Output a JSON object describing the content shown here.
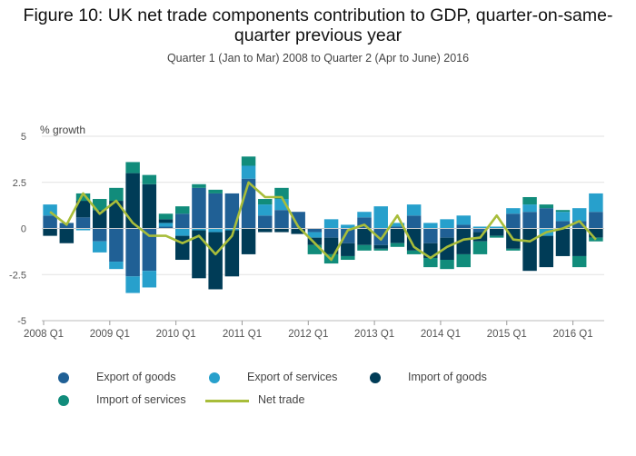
{
  "title_line1": "Figure 10: UK net trade components contribution to GDP, quarter-on-same-",
  "title_line2": "quarter previous year",
  "subtitle": "Quarter 1 (Jan to Mar) 2008 to Quarter 2 (Apr to June) 2016",
  "chart_data": {
    "type": "bar",
    "stacked": true,
    "ylabel": "% growth",
    "ylim": [
      -5,
      5
    ],
    "yticks": [
      -5,
      -2.5,
      0,
      2.5,
      5
    ],
    "ytick_labels": [
      "-5",
      "-2.5",
      "0",
      "2.5",
      "5"
    ],
    "grid": true,
    "legend_position": "bottom",
    "x_tick_labels": [
      "2008 Q1",
      "2009 Q1",
      "2010 Q1",
      "2011 Q1",
      "2012 Q1",
      "2013 Q1",
      "2014 Q1",
      "2015 Q1",
      "2016 Q1"
    ],
    "categories": [
      "2008 Q1",
      "2008 Q2",
      "2008 Q3",
      "2008 Q4",
      "2009 Q1",
      "2009 Q2",
      "2009 Q3",
      "2009 Q4",
      "2010 Q1",
      "2010 Q2",
      "2010 Q3",
      "2010 Q4",
      "2011 Q1",
      "2011 Q2",
      "2011 Q3",
      "2011 Q4",
      "2012 Q1",
      "2012 Q2",
      "2012 Q3",
      "2012 Q4",
      "2013 Q1",
      "2013 Q2",
      "2013 Q3",
      "2013 Q4",
      "2014 Q1",
      "2014 Q2",
      "2014 Q3",
      "2014 Q4",
      "2015 Q1",
      "2015 Q2",
      "2015 Q3",
      "2015 Q4",
      "2016 Q1",
      "2016 Q2"
    ],
    "series": [
      {
        "name": "Export of goods",
        "color": "#206095",
        "values": [
          0.7,
          0.3,
          0.6,
          -0.7,
          -1.8,
          -2.6,
          -2.3,
          0.1,
          0.8,
          2.2,
          1.9,
          1.9,
          2.7,
          0.7,
          1.0,
          0.9,
          -0.2,
          -0.5,
          -0.8,
          0.6,
          -0.9,
          0.1,
          0.7,
          -0.8,
          -0.5,
          0.2,
          -0.2,
          0.0,
          0.8,
          0.9,
          1.1,
          0.4,
          0.4,
          0.9
        ]
      },
      {
        "name": "Export of services",
        "color": "#27a0cc",
        "values": [
          0.6,
          0.0,
          -0.1,
          -0.6,
          -0.4,
          -0.9,
          -0.9,
          0.2,
          -0.4,
          -0.1,
          -0.2,
          -0.1,
          0.7,
          0.6,
          0.6,
          0.0,
          -0.3,
          0.5,
          0.2,
          0.3,
          1.2,
          0.2,
          0.6,
          0.3,
          0.5,
          0.5,
          0.1,
          0.1,
          0.3,
          0.4,
          -0.4,
          0.5,
          0.7,
          1.0
        ]
      },
      {
        "name": "Import of goods",
        "color": "#003c57",
        "values": [
          -0.4,
          -0.8,
          0.9,
          1.0,
          1.5,
          3.0,
          2.4,
          0.2,
          -1.3,
          -2.6,
          -3.1,
          -2.5,
          -1.4,
          -0.2,
          -0.2,
          -0.3,
          -0.4,
          -0.9,
          -0.7,
          -0.9,
          -0.2,
          -0.8,
          -1.2,
          -0.8,
          -1.2,
          -1.4,
          -0.5,
          -0.4,
          -1.1,
          -2.3,
          -1.7,
          -1.5,
          -1.5,
          -0.5
        ]
      },
      {
        "name": "Import of services",
        "color": "#118c7b",
        "values": [
          0.0,
          0.0,
          0.4,
          0.6,
          0.7,
          0.6,
          0.5,
          0.3,
          0.4,
          0.2,
          0.2,
          0.0,
          0.5,
          0.3,
          0.6,
          0.0,
          -0.5,
          -0.5,
          -0.2,
          -0.3,
          -0.1,
          -0.2,
          -0.2,
          -0.5,
          -0.5,
          -0.7,
          -0.7,
          -0.1,
          -0.1,
          0.4,
          0.2,
          0.1,
          -0.6,
          -0.2
        ]
      },
      {
        "name": "Net trade",
        "color": "#a8bd3a",
        "type": "line",
        "values": [
          0.9,
          0.2,
          1.9,
          0.8,
          1.5,
          0.3,
          -0.4,
          -0.4,
          -0.8,
          -0.4,
          -1.4,
          -0.4,
          2.5,
          1.7,
          1.7,
          0.1,
          -0.8,
          -1.7,
          -0.1,
          0.2,
          -0.6,
          0.7,
          -1.0,
          -1.6,
          -1.0,
          -0.6,
          -0.5,
          0.7,
          -0.6,
          -0.7,
          -0.2,
          0.0,
          0.4,
          -0.6
        ]
      }
    ]
  }
}
